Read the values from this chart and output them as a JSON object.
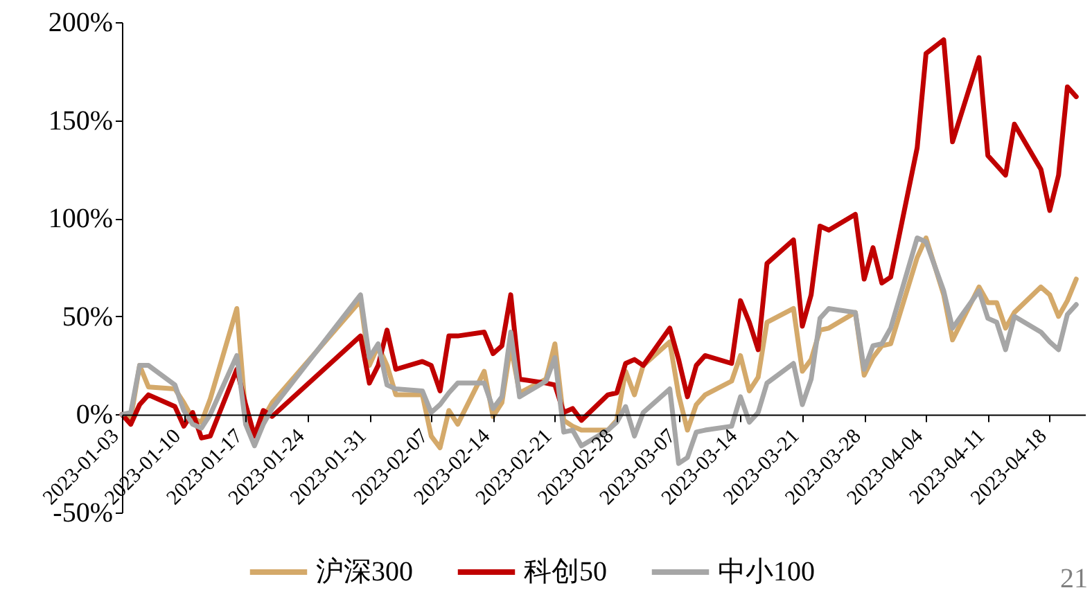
{
  "chart_data": {
    "type": "line",
    "x": [
      "2023-01-03",
      "2023-01-04",
      "2023-01-05",
      "2023-01-06",
      "2023-01-09",
      "2023-01-10",
      "2023-01-11",
      "2023-01-12",
      "2023-01-13",
      "2023-01-16",
      "2023-01-17",
      "2023-01-18",
      "2023-01-19",
      "2023-01-20",
      "2023-01-30",
      "2023-01-31",
      "2023-02-01",
      "2023-02-02",
      "2023-02-03",
      "2023-02-06",
      "2023-02-07",
      "2023-02-08",
      "2023-02-09",
      "2023-02-10",
      "2023-02-13",
      "2023-02-14",
      "2023-02-15",
      "2023-02-16",
      "2023-02-17",
      "2023-02-20",
      "2023-02-21",
      "2023-02-22",
      "2023-02-23",
      "2023-02-24",
      "2023-02-27",
      "2023-02-28",
      "2023-03-01",
      "2023-03-02",
      "2023-03-03",
      "2023-03-06",
      "2023-03-07",
      "2023-03-08",
      "2023-03-09",
      "2023-03-10",
      "2023-03-13",
      "2023-03-14",
      "2023-03-15",
      "2023-03-16",
      "2023-03-17",
      "2023-03-20",
      "2023-03-21",
      "2023-03-22",
      "2023-03-23",
      "2023-03-24",
      "2023-03-27",
      "2023-03-28",
      "2023-03-29",
      "2023-03-30",
      "2023-03-31",
      "2023-04-03",
      "2023-04-04",
      "2023-04-06",
      "2023-04-07",
      "2023-04-10",
      "2023-04-11",
      "2023-04-12",
      "2023-04-13",
      "2023-04-14",
      "2023-04-17",
      "2023-04-18",
      "2023-04-19",
      "2023-04-20",
      "2023-04-21"
    ],
    "series": [
      {
        "name": "沪深300",
        "color": "#d4a96a",
        "values": [
          0,
          -2,
          25,
          14,
          13,
          6,
          -2,
          -4,
          8,
          54,
          0,
          -10,
          -2,
          6,
          58,
          25,
          35,
          25,
          10,
          10,
          -11,
          -17,
          2,
          -5,
          22,
          -1,
          6,
          35,
          11,
          18,
          36,
          -3,
          -6,
          -8,
          -8,
          -3,
          22,
          10,
          25,
          37,
          10,
          -8,
          5,
          10,
          17,
          30,
          12,
          19,
          47,
          54,
          22,
          28,
          43,
          44,
          52,
          20,
          29,
          35,
          36,
          80,
          90,
          61,
          38,
          65,
          57,
          57,
          44,
          52,
          65,
          61,
          50,
          58,
          69
        ]
      },
      {
        "name": "科创50",
        "color": "#c00000",
        "values": [
          0,
          -5,
          5,
          10,
          4,
          -6,
          1,
          -12,
          -11,
          23,
          5,
          -11,
          2,
          -1,
          40,
          16,
          25,
          43,
          23,
          27,
          25,
          12,
          40,
          40,
          42,
          31,
          35,
          61,
          18,
          16,
          15,
          1,
          3,
          -3,
          10,
          11,
          26,
          28,
          25,
          44,
          28,
          9,
          25,
          30,
          26,
          58,
          47,
          33,
          77,
          89,
          45,
          61,
          96,
          94,
          102,
          69,
          85,
          67,
          70,
          136,
          184,
          191,
          139,
          182,
          132,
          127,
          122,
          148,
          125,
          104,
          122,
          167,
          162
        ]
      },
      {
        "name": "中小100",
        "color": "#a6a6a6",
        "values": [
          0,
          1,
          25,
          25,
          15,
          2,
          -5,
          -7,
          0,
          30,
          -5,
          -16,
          -5,
          3,
          61,
          29,
          36,
          15,
          13,
          12,
          1,
          5,
          11,
          16,
          16,
          3,
          9,
          42,
          9,
          17,
          29,
          -9,
          -8,
          -16,
          -8,
          -4,
          4,
          -11,
          1,
          13,
          -25,
          -22,
          -9,
          -8,
          -6,
          9,
          -4,
          1,
          16,
          26,
          5,
          18,
          49,
          54,
          52,
          23,
          35,
          36,
          44,
          90,
          88,
          63,
          44,
          63,
          49,
          47,
          33,
          50,
          42,
          37,
          33,
          51,
          56
        ]
      }
    ],
    "xlim": [
      "2023-01-03",
      "2023-04-22"
    ],
    "xticks": [
      "2023-01-03",
      "2023-01-10",
      "2023-01-17",
      "2023-01-24",
      "2023-01-31",
      "2023-02-07",
      "2023-02-14",
      "2023-02-21",
      "2023-02-28",
      "2023-03-07",
      "2023-03-14",
      "2023-03-21",
      "2023-03-28",
      "2023-04-04",
      "2023-04-11",
      "2023-04-18"
    ],
    "ylim": [
      -50,
      200
    ],
    "yticks": [
      {
        "value": -50,
        "label": "-50%"
      },
      {
        "value": 0,
        "label": "0%"
      },
      {
        "value": 50,
        "label": "50%"
      },
      {
        "value": 100,
        "label": "100%"
      },
      {
        "value": 150,
        "label": "150%"
      },
      {
        "value": 200,
        "label": "200%"
      }
    ],
    "grid": false,
    "legend": "bottom",
    "marker": "none",
    "line_style": "solid",
    "annotations": [
      "21"
    ]
  }
}
